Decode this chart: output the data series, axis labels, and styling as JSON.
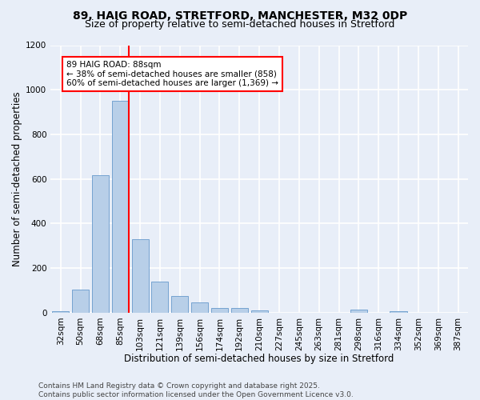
{
  "title1": "89, HAIG ROAD, STRETFORD, MANCHESTER, M32 0DP",
  "title2": "Size of property relative to semi-detached houses in Stretford",
  "xlabel": "Distribution of semi-detached houses by size in Stretford",
  "ylabel": "Number of semi-detached properties",
  "categories": [
    "32sqm",
    "50sqm",
    "68sqm",
    "85sqm",
    "103sqm",
    "121sqm",
    "139sqm",
    "156sqm",
    "174sqm",
    "192sqm",
    "210sqm",
    "227sqm",
    "245sqm",
    "263sqm",
    "281sqm",
    "298sqm",
    "316sqm",
    "334sqm",
    "352sqm",
    "369sqm",
    "387sqm"
  ],
  "values": [
    8,
    105,
    615,
    950,
    330,
    140,
    75,
    45,
    22,
    22,
    12,
    0,
    0,
    0,
    0,
    13,
    0,
    8,
    0,
    0,
    0
  ],
  "bar_color": "#b8cfe8",
  "bar_edgecolor": "#6699cc",
  "vline_x_index": 3,
  "vline_color": "red",
  "annotation_line1": "89 HAIG ROAD: 88sqm",
  "annotation_line2": "← 38% of semi-detached houses are smaller (858)",
  "annotation_line3": "60% of semi-detached houses are larger (1,369) →",
  "annotation_boxcolor": "white",
  "annotation_edgecolor": "red",
  "ylim": [
    0,
    1200
  ],
  "yticks": [
    0,
    200,
    400,
    600,
    800,
    1000,
    1200
  ],
  "footer": "Contains HM Land Registry data © Crown copyright and database right 2025.\nContains public sector information licensed under the Open Government Licence v3.0.",
  "bg_color": "#e8eef8",
  "plot_bg_color": "#e8eef8",
  "grid_color": "white",
  "title1_fontsize": 10,
  "title2_fontsize": 9,
  "xlabel_fontsize": 8.5,
  "ylabel_fontsize": 8.5,
  "tick_fontsize": 7.5,
  "annotation_fontsize": 7.5,
  "footer_fontsize": 6.5
}
